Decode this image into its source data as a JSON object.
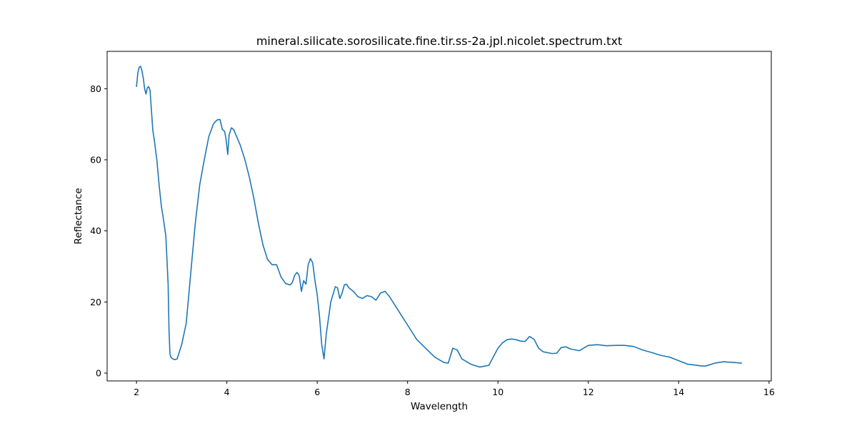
{
  "chart_data": {
    "type": "line",
    "title": "mineral.silicate.sorosilicate.fine.tir.ss-2a.jpl.nicolet.spectrum.txt",
    "xlabel": "Wavelength",
    "ylabel": "Reflectance",
    "xlim": [
      1.35,
      16.05
    ],
    "ylim": [
      -2.2,
      90.5
    ],
    "xticks": [
      2,
      4,
      6,
      8,
      10,
      12,
      14,
      16
    ],
    "yticks": [
      0,
      20,
      40,
      60,
      80
    ],
    "grid": false,
    "series": [
      {
        "color": "#1f77b4",
        "x": [
          2.0,
          2.03,
          2.06,
          2.09,
          2.12,
          2.15,
          2.18,
          2.21,
          2.24,
          2.27,
          2.3,
          2.33,
          2.36,
          2.4,
          2.45,
          2.5,
          2.55,
          2.6,
          2.65,
          2.7,
          2.72,
          2.74,
          2.76,
          2.8,
          2.85,
          2.9,
          3.0,
          3.1,
          3.2,
          3.3,
          3.4,
          3.5,
          3.6,
          3.7,
          3.75,
          3.8,
          3.85,
          3.9,
          3.95,
          3.98,
          4.02,
          4.05,
          4.1,
          4.15,
          4.2,
          4.3,
          4.4,
          4.5,
          4.6,
          4.7,
          4.8,
          4.9,
          5.0,
          5.1,
          5.2,
          5.3,
          5.4,
          5.45,
          5.5,
          5.55,
          5.6,
          5.65,
          5.7,
          5.75,
          5.8,
          5.85,
          5.9,
          5.95,
          6.0,
          6.05,
          6.1,
          6.15,
          6.2,
          6.3,
          6.4,
          6.45,
          6.5,
          6.55,
          6.6,
          6.65,
          6.7,
          6.8,
          6.9,
          7.0,
          7.1,
          7.2,
          7.3,
          7.4,
          7.5,
          7.6,
          7.7,
          7.8,
          7.9,
          8.0,
          8.2,
          8.4,
          8.6,
          8.8,
          8.9,
          9.0,
          9.1,
          9.2,
          9.4,
          9.6,
          9.8,
          10.0,
          10.1,
          10.2,
          10.3,
          10.4,
          10.5,
          10.6,
          10.7,
          10.8,
          10.9,
          11.0,
          11.2,
          11.3,
          11.4,
          11.5,
          11.6,
          11.8,
          12.0,
          12.2,
          12.4,
          12.6,
          12.8,
          13.0,
          13.2,
          13.4,
          13.6,
          13.8,
          14.0,
          14.2,
          14.4,
          14.5,
          14.6,
          14.8,
          15.0,
          15.2,
          15.4
        ],
        "y": [
          80.5,
          84.5,
          86.0,
          86.3,
          85.0,
          83.0,
          80.0,
          78.5,
          80.3,
          80.6,
          79.5,
          74.0,
          68.5,
          65.0,
          60.0,
          53.0,
          47.0,
          43.0,
          38.5,
          25.0,
          12.0,
          5.5,
          4.5,
          4.0,
          3.8,
          4.0,
          8.0,
          14.0,
          28.0,
          42.0,
          53.0,
          60.0,
          66.5,
          70.0,
          70.8,
          71.3,
          71.3,
          68.5,
          68.0,
          66.0,
          61.5,
          67.0,
          69.0,
          68.5,
          67.0,
          64.0,
          60.0,
          55.0,
          49.0,
          42.0,
          36.0,
          32.0,
          30.5,
          30.5,
          27.0,
          25.2,
          24.8,
          25.5,
          27.5,
          28.3,
          27.5,
          23.0,
          26.0,
          25.0,
          30.5,
          32.2,
          31.0,
          26.0,
          22.0,
          16.0,
          8.0,
          4.0,
          11.0,
          20.0,
          24.3,
          24.0,
          21.0,
          22.5,
          24.8,
          25.0,
          24.0,
          23.0,
          21.5,
          21.0,
          21.8,
          21.5,
          20.5,
          22.5,
          23.0,
          21.5,
          19.5,
          17.5,
          15.5,
          13.5,
          9.5,
          7.0,
          4.5,
          3.0,
          2.8,
          7.0,
          6.5,
          4.0,
          2.5,
          1.7,
          2.2,
          7.0,
          8.5,
          9.4,
          9.6,
          9.4,
          9.0,
          8.9,
          10.3,
          9.5,
          7.0,
          6.0,
          5.5,
          5.6,
          7.2,
          7.4,
          6.8,
          6.3,
          7.8,
          8.0,
          7.7,
          7.8,
          7.8,
          7.5,
          6.5,
          5.8,
          5.0,
          4.5,
          3.5,
          2.5,
          2.2,
          2.0,
          2.0,
          2.8,
          3.2,
          3.0,
          2.8
        ]
      }
    ]
  }
}
